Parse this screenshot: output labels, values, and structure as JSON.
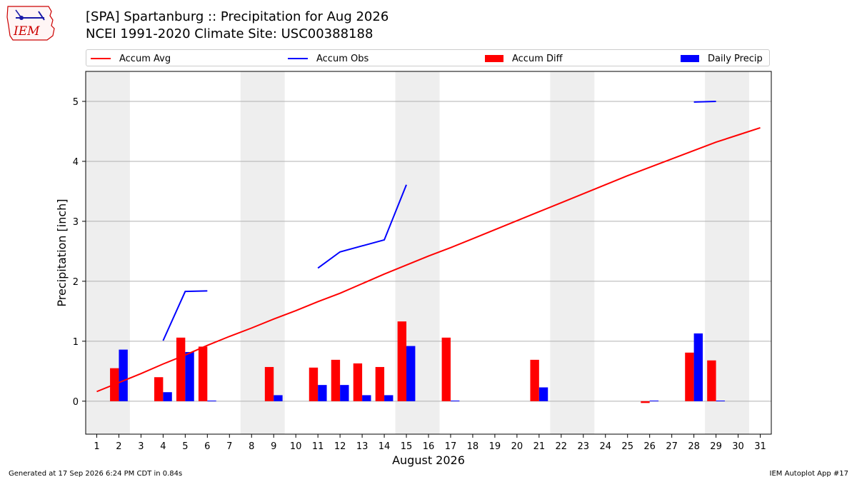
{
  "header": {
    "title_line1": "[SPA] Spartanburg :: Precipitation for Aug 2026",
    "title_line2": "NCEI 1991-2020 Climate Site: USC00388188"
  },
  "logo": {
    "text": "IEM",
    "color": "#cc0000",
    "accent": "#1a1aa8"
  },
  "legend": [
    {
      "label": "Accum Avg",
      "kind": "line",
      "color": "#ff0000"
    },
    {
      "label": "Accum Obs",
      "kind": "line",
      "color": "#0000ff"
    },
    {
      "label": "Accum Diff",
      "kind": "bar",
      "color": "#ff0000"
    },
    {
      "label": "Daily Precip",
      "kind": "bar",
      "color": "#0000ff"
    }
  ],
  "footer": {
    "left": "Generated at 17 Sep 2026 6:24 PM CDT in 0.84s",
    "right": "IEM Autoplot App #17"
  },
  "chart_data": {
    "type": "bar",
    "xlabel": "August 2026",
    "ylabel": "Precipitation [inch]",
    "xlim": [
      0.5,
      31.5
    ],
    "ylim": [
      -0.55,
      5.5
    ],
    "yticks": [
      0,
      1,
      2,
      3,
      4,
      5
    ],
    "grid": "horizontal",
    "legend_position": "top",
    "weekend_shading": [
      [
        1,
        2
      ],
      [
        8,
        9
      ],
      [
        15,
        16
      ],
      [
        22,
        23
      ],
      [
        29,
        30
      ]
    ],
    "days": [
      1,
      2,
      3,
      4,
      5,
      6,
      7,
      8,
      9,
      10,
      11,
      12,
      13,
      14,
      15,
      16,
      17,
      18,
      19,
      20,
      21,
      22,
      23,
      24,
      25,
      26,
      27,
      28,
      29,
      30,
      31
    ],
    "accum_avg": [
      0.16,
      0.31,
      0.46,
      0.62,
      0.77,
      0.93,
      1.08,
      1.22,
      1.37,
      1.51,
      1.66,
      1.8,
      1.96,
      2.12,
      2.27,
      2.42,
      2.56,
      2.71,
      2.86,
      3.01,
      3.16,
      3.31,
      3.46,
      3.61,
      3.76,
      3.9,
      4.04,
      4.18,
      4.32,
      4.44,
      4.56
    ],
    "accum_obs_segments": [
      {
        "x": [
          4,
          5,
          6
        ],
        "y": [
          1.01,
          1.83,
          1.84
        ]
      },
      {
        "x": [
          11,
          12,
          13,
          14,
          15
        ],
        "y": [
          2.22,
          2.49,
          2.59,
          2.69,
          3.61
        ]
      },
      {
        "x": [
          28,
          29
        ],
        "y": [
          4.99,
          5.0
        ]
      }
    ],
    "series": [
      {
        "name": "Accum Diff",
        "days": [
          2,
          4,
          5,
          6,
          9,
          11,
          12,
          13,
          14,
          15,
          17,
          21,
          26,
          28,
          29
        ],
        "values": [
          0.55,
          0.4,
          1.06,
          0.91,
          0.57,
          0.56,
          0.69,
          0.63,
          0.57,
          1.33,
          1.06,
          0.69,
          -0.03,
          0.81,
          0.68
        ]
      },
      {
        "name": "Daily Precip",
        "days": [
          2,
          4,
          5,
          6,
          9,
          11,
          12,
          13,
          14,
          15,
          17,
          21,
          26,
          28,
          29
        ],
        "values": [
          0.86,
          0.15,
          0.82,
          0.01,
          0.1,
          0.27,
          0.27,
          0.1,
          0.1,
          0.92,
          0.01,
          0.23,
          0.01,
          1.13,
          0.01
        ]
      }
    ],
    "colors": {
      "avg": "#ff0000",
      "obs": "#0000ff",
      "diff": "#ff0000",
      "daily": "#0000ff",
      "shade": "#eeeeee",
      "grid": "#b0b0b0"
    }
  }
}
